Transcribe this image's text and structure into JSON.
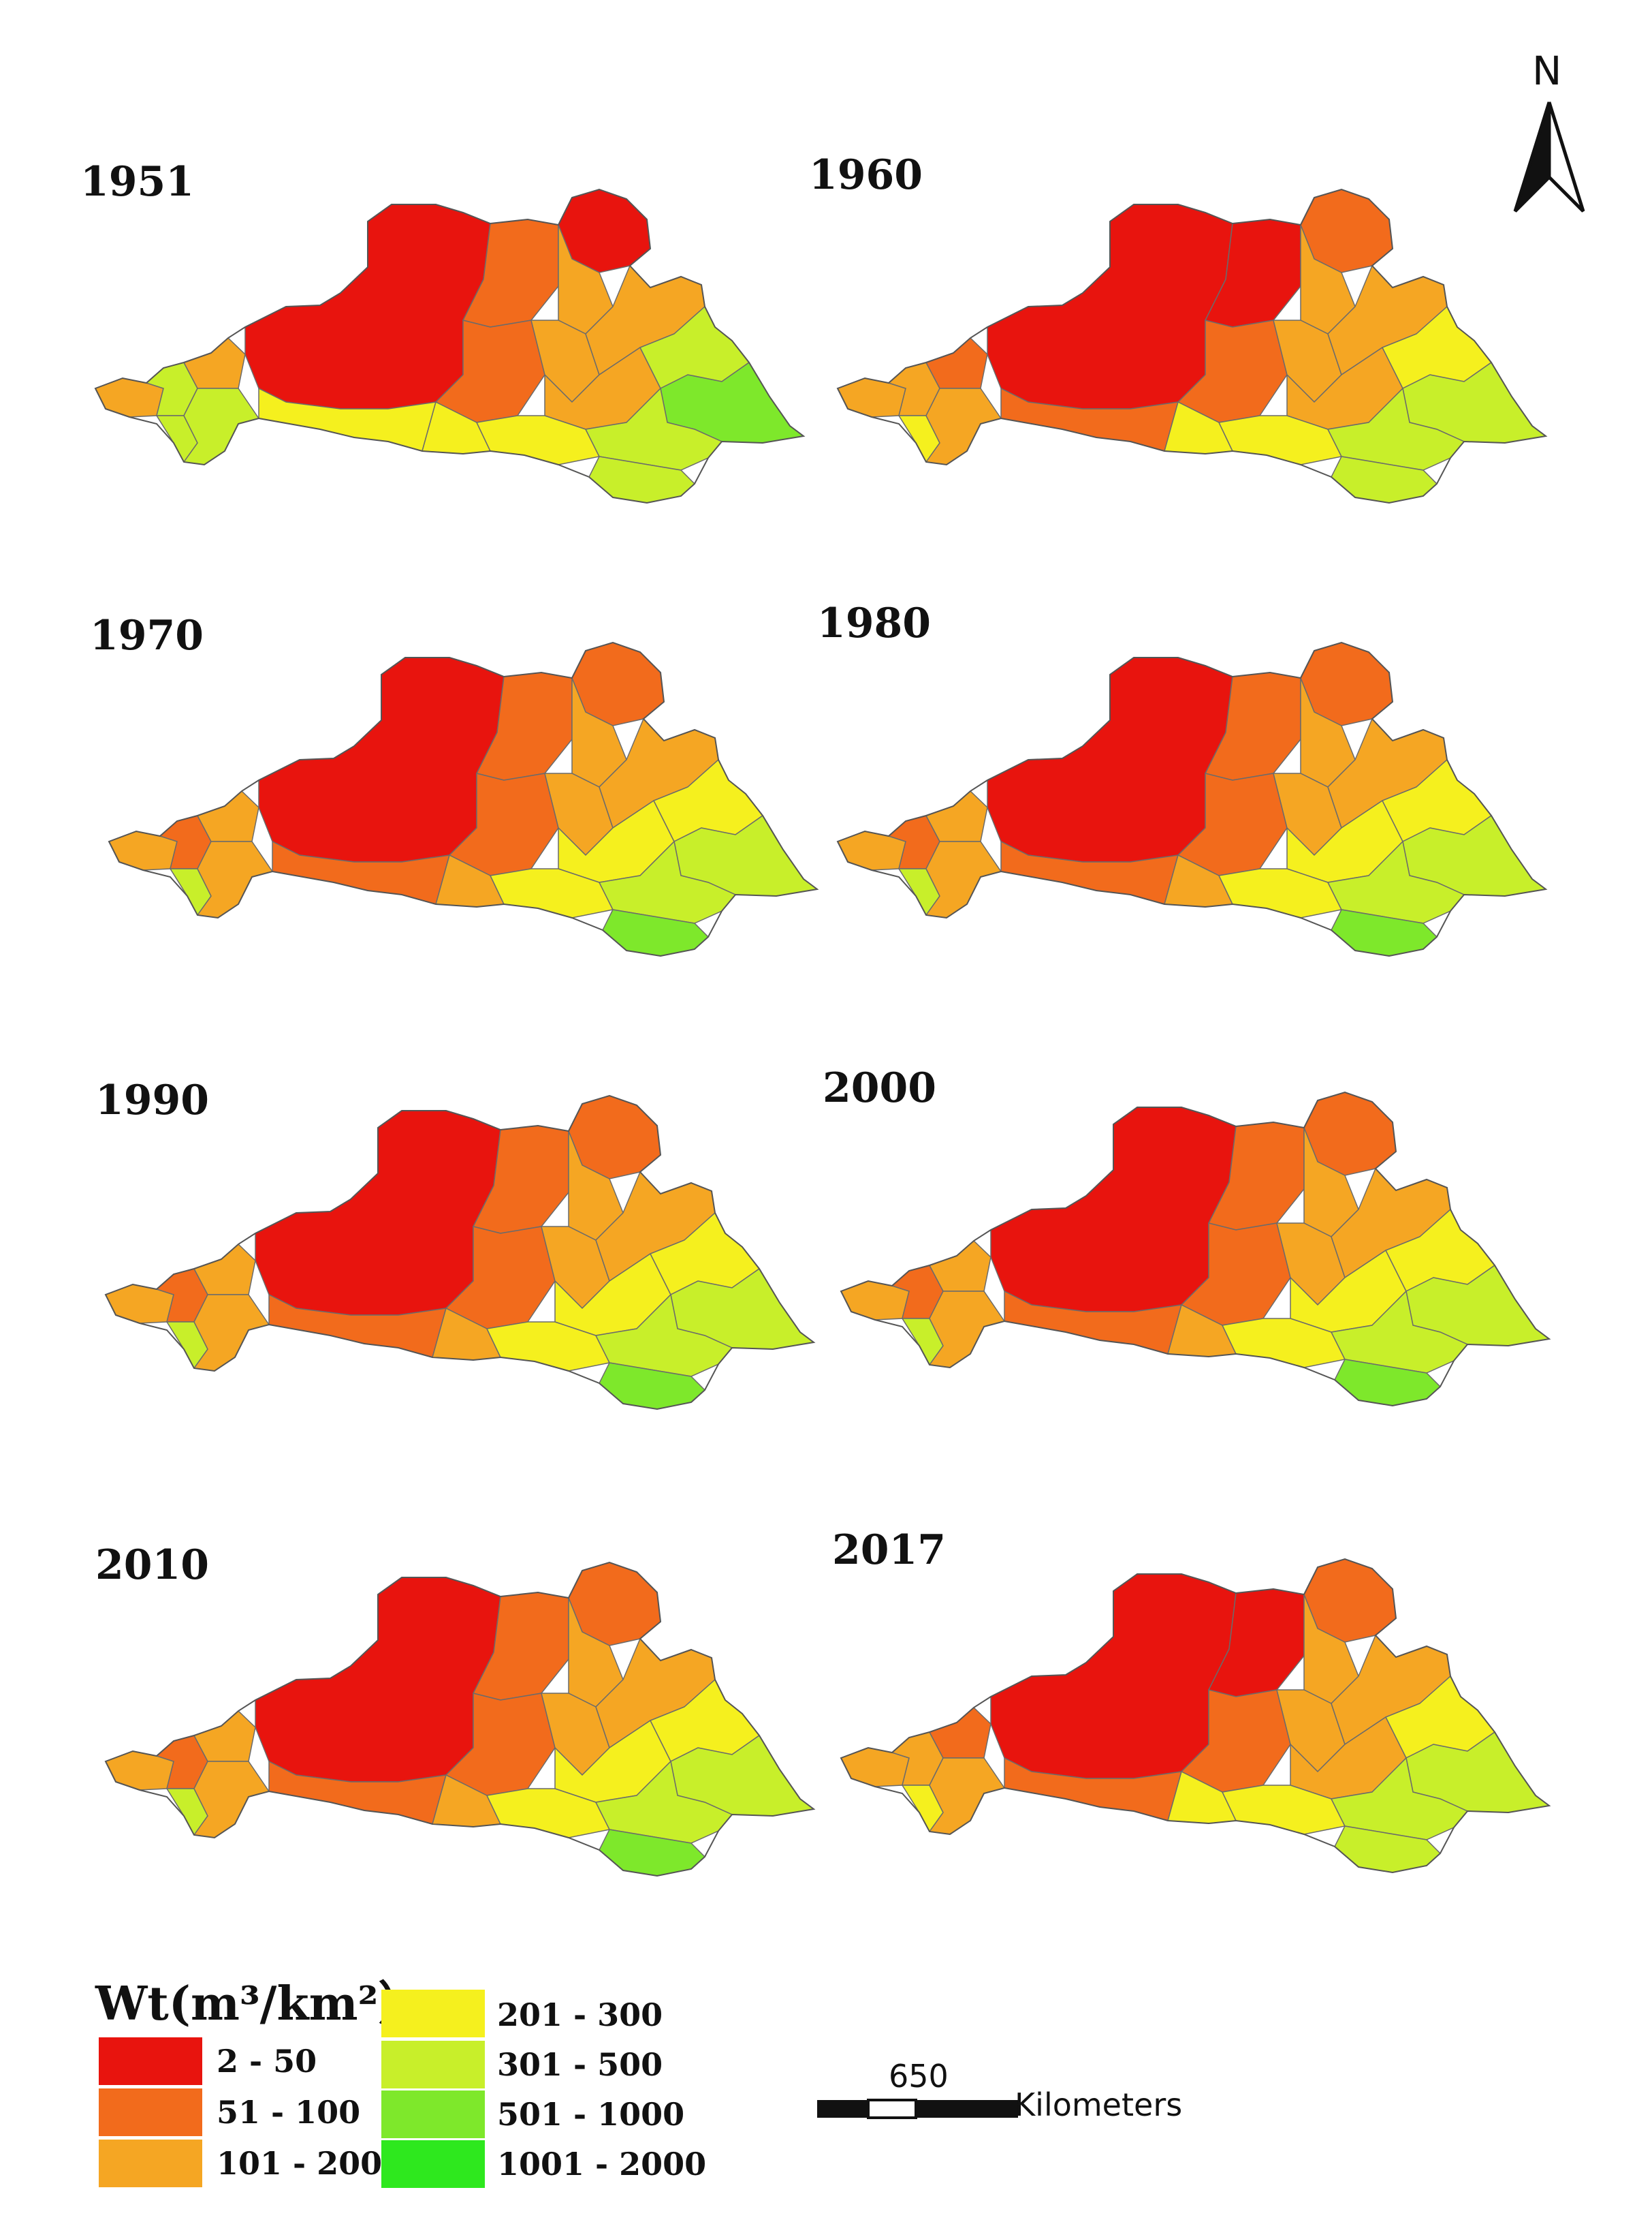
{
  "north_arrow": {
    "label": "N"
  },
  "panels": [
    {
      "year": "1951",
      "pattern": "west_low_east_green"
    },
    {
      "year": "1960",
      "pattern": "center_low_east_mixed"
    },
    {
      "year": "1970",
      "pattern": "center_low_east_green"
    },
    {
      "year": "1980",
      "pattern": "center_low_east_green"
    },
    {
      "year": "1990",
      "pattern": "center_low_east_green"
    },
    {
      "year": "2000",
      "pattern": "center_low_east_green"
    },
    {
      "year": "2010",
      "pattern": "center_low_east_green"
    },
    {
      "year": "2017",
      "pattern": "center_low_east_mixed"
    }
  ],
  "legend": {
    "title": "Wt(m³/km²）",
    "classes": [
      {
        "label": "2 - 50",
        "color": "#e8140e"
      },
      {
        "label": "51 - 100",
        "color": "#f26b1c"
      },
      {
        "label": "101 - 200",
        "color": "#f5a623"
      },
      {
        "label": "201 - 300",
        "color": "#f5f01e"
      },
      {
        "label": "301 - 500",
        "color": "#c8ef2a"
      },
      {
        "label": "501 - 1000",
        "color": "#7ee82b"
      },
      {
        "label": "1001 - 2000",
        "color": "#2ee81e"
      }
    ]
  },
  "scale": {
    "value": "650",
    "unit": "Kilometers"
  }
}
